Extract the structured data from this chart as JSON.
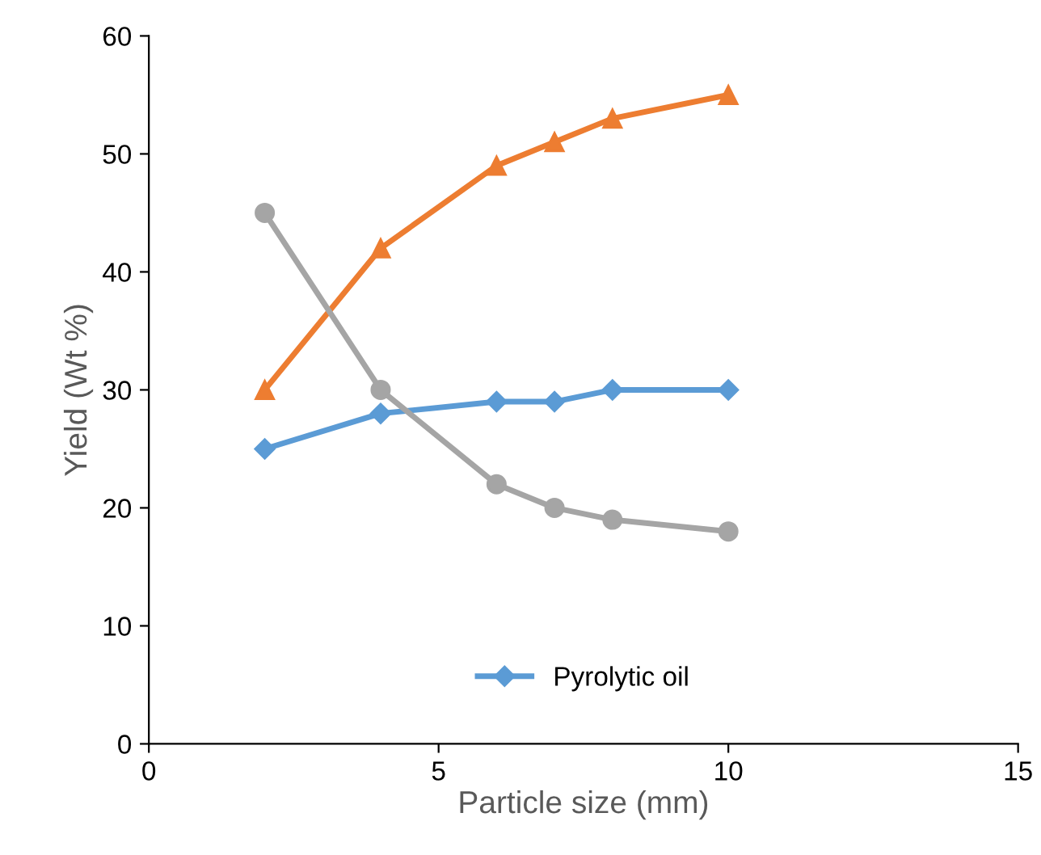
{
  "chart_data": {
    "type": "line",
    "xlabel": "Particle size (mm)",
    "ylabel": "Yield (Wt %)",
    "xlim": [
      0,
      15
    ],
    "xticks": [
      0,
      5,
      10,
      15
    ],
    "ylim": [
      0,
      60
    ],
    "yticks": [
      0,
      10,
      20,
      30,
      40,
      50,
      60
    ],
    "grid": false,
    "legend": "bottom",
    "series": [
      {
        "name": "Pyrolytic oil",
        "color": "#5b9bd5",
        "marker": "diamond",
        "x": [
          2,
          4,
          6,
          7,
          8,
          10
        ],
        "values": [
          25,
          28,
          29,
          29,
          30,
          30
        ]
      },
      {
        "color": "#ed7d31",
        "marker": "triangle",
        "x": [
          2,
          4,
          6,
          7,
          8,
          10
        ],
        "values": [
          30,
          42,
          49,
          51,
          53,
          55
        ]
      },
      {
        "color": "#a5a5a5",
        "marker": "circle",
        "x": [
          2,
          4,
          6,
          7,
          8,
          10
        ],
        "values": [
          45,
          30,
          22,
          20,
          19,
          18
        ]
      }
    ]
  }
}
